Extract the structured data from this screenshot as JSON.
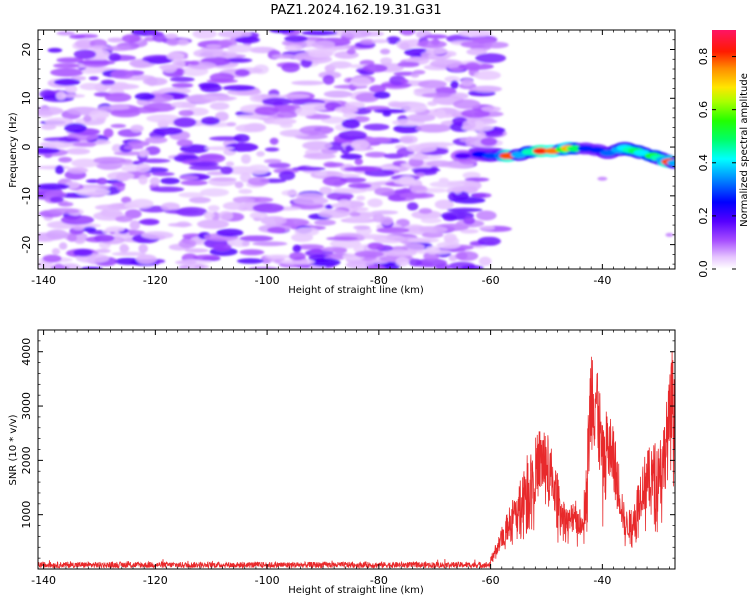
{
  "title": "PAZ1.2024.162.19.31.G31",
  "chart_data": [
    {
      "type": "heatmap",
      "xlabel": "Height of straight line (km)",
      "ylabel": "Frequency (Hz)",
      "xlim": [
        -141,
        -27
      ],
      "ylim": [
        -25,
        24
      ],
      "xticks": [
        -140,
        -120,
        -100,
        -80,
        -60,
        -40
      ],
      "yticks": [
        -20,
        -10,
        0,
        10,
        20
      ],
      "colorbar": {
        "label": "Normalized spectral amplitude",
        "range": [
          0.0,
          0.9
        ],
        "ticks": [
          0.0,
          0.2,
          0.4,
          0.6,
          0.8
        ],
        "colormap": "gist_rainbow_r"
      },
      "features": {
        "noise_region_x": [
          -140,
          -59
        ],
        "noise_amplitude_range": [
          0.05,
          0.2
        ],
        "signal_trace_x": [
          -65,
          -27
        ],
        "signal_trace_freq_at_start": -1.5,
        "signal_trace_freq_at_end": -3,
        "signal_peak_amplitude": 0.9
      }
    },
    {
      "type": "line",
      "xlabel": "Height of straight line (km)",
      "ylabel": "SNR (10 * v/v)",
      "xlim": [
        -141,
        -27
      ],
      "ylim": [
        0,
        4400
      ],
      "xticks": [
        -140,
        -120,
        -100,
        -80,
        -60,
        -40
      ],
      "yticks": [
        1000,
        2000,
        3000,
        4000
      ],
      "color": "#e8292b",
      "envelope": {
        "x": [
          -141,
          -61,
          -60,
          -58,
          -56,
          -55,
          -54,
          -52,
          -51,
          -50,
          -49,
          -48,
          -47,
          -46,
          -45,
          -44,
          -43,
          -42,
          -41,
          -40,
          -39,
          -38,
          -37,
          -36,
          -35,
          -34,
          -33,
          -32,
          -31,
          -30,
          -29,
          -28,
          -27.5,
          -27
        ],
        "y": [
          60,
          70,
          200,
          700,
          1200,
          1500,
          1800,
          2200,
          2450,
          2350,
          2000,
          1600,
          1200,
          1000,
          1300,
          1000,
          1500,
          4000,
          3800,
          2400,
          2800,
          2400,
          1800,
          1000,
          1000,
          1300,
          1800,
          2000,
          2100,
          2200,
          2500,
          3200,
          3800,
          3000
        ]
      }
    }
  ]
}
